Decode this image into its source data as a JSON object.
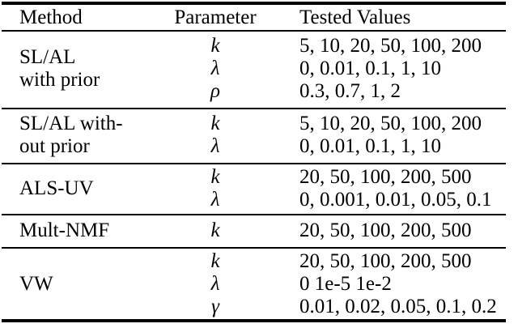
{
  "table": {
    "headers": [
      "Method",
      "Parameter",
      "Tested Values"
    ],
    "groups": [
      {
        "method": [
          "SL/AL",
          "with prior"
        ],
        "rows": [
          {
            "param": "k",
            "values": "5, 10, 20, 50, 100, 200"
          },
          {
            "param": "λ",
            "values": "0, 0.01, 0.1, 1, 10"
          },
          {
            "param": "ρ",
            "values": "0.3, 0.7, 1, 2"
          }
        ]
      },
      {
        "method": [
          "SL/AL with-",
          "out prior"
        ],
        "rows": [
          {
            "param": "k",
            "values": "5, 10, 20, 50, 100, 200"
          },
          {
            "param": "λ",
            "values": "0, 0.01, 0.1, 1, 10"
          }
        ]
      },
      {
        "method": [
          "ALS-UV"
        ],
        "rows": [
          {
            "param": "k",
            "values": "20, 50, 100, 200, 500"
          },
          {
            "param": "λ",
            "values": "0, 0.001, 0.01, 0.05, 0.1"
          }
        ]
      },
      {
        "method": [
          "Mult-NMF"
        ],
        "rows": [
          {
            "param": "k",
            "values": "20, 50, 100, 200, 500"
          }
        ]
      },
      {
        "method": [
          "VW"
        ],
        "rows": [
          {
            "param": "k",
            "values": "20, 50, 100, 200, 500"
          },
          {
            "param": "λ",
            "values": "0 1e-5 1e-2"
          },
          {
            "param": "γ",
            "values": "0.01, 0.02, 0.05, 0.1, 0.2"
          }
        ]
      }
    ],
    "colors": {
      "text": "#000000",
      "rule": "#000000",
      "background": "#ffffff"
    }
  }
}
